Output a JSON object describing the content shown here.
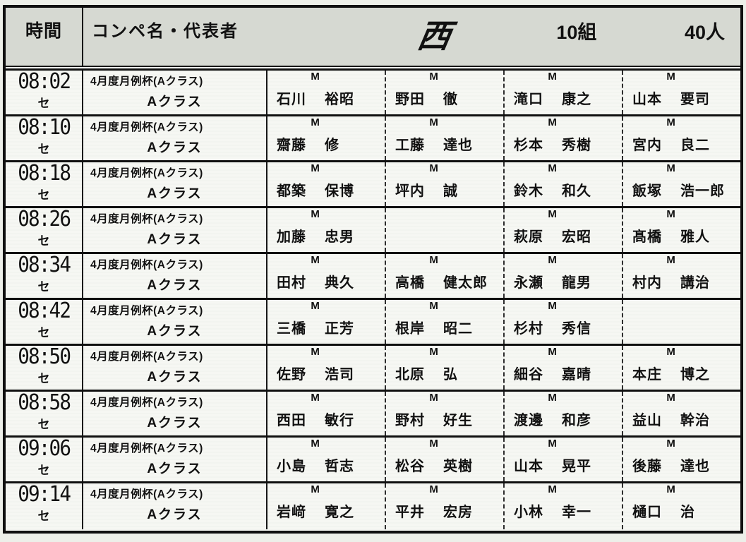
{
  "header": {
    "time_col": "時間",
    "compe_col": "コンペ名・代表者",
    "course": "西",
    "groups": "10組",
    "players_total": "40人"
  },
  "rows": [
    {
      "time": "08:02",
      "se": "セ",
      "compe_line1": "4月度月例杯(Aクラス)",
      "compe_line2": "Aクラス",
      "players": [
        {
          "marker": "M",
          "sei": "石川",
          "mei": "裕昭"
        },
        {
          "marker": "M",
          "sei": "野田",
          "mei": "徹"
        },
        {
          "marker": "M",
          "sei": "滝口",
          "mei": "康之"
        },
        {
          "marker": "M",
          "sei": "山本",
          "mei": "要司"
        }
      ]
    },
    {
      "time": "08:10",
      "se": "セ",
      "compe_line1": "4月度月例杯(Aクラス)",
      "compe_line2": "Aクラス",
      "players": [
        {
          "marker": "M",
          "sei": "齋藤",
          "mei": "修"
        },
        {
          "marker": "M",
          "sei": "工藤",
          "mei": "達也"
        },
        {
          "marker": "M",
          "sei": "杉本",
          "mei": "秀樹"
        },
        {
          "marker": "M",
          "sei": "宮内",
          "mei": "良二"
        }
      ]
    },
    {
      "time": "08:18",
      "se": "セ",
      "compe_line1": "4月度月例杯(Aクラス)",
      "compe_line2": "Aクラス",
      "players": [
        {
          "marker": "M",
          "sei": "都築",
          "mei": "保博"
        },
        {
          "marker": "M",
          "sei": "坪内",
          "mei": "誠"
        },
        {
          "marker": "M",
          "sei": "鈴木",
          "mei": "和久"
        },
        {
          "marker": "M",
          "sei": "飯塚",
          "mei": "浩一郎"
        }
      ]
    },
    {
      "time": "08:26",
      "se": "セ",
      "compe_line1": "4月度月例杯(Aクラス)",
      "compe_line2": "Aクラス",
      "players": [
        {
          "marker": "M",
          "sei": "加藤",
          "mei": "忠男"
        },
        {},
        {
          "marker": "M",
          "sei": "萩原",
          "mei": "宏昭"
        },
        {
          "marker": "M",
          "sei": "髙橋",
          "mei": "雅人"
        }
      ]
    },
    {
      "time": "08:34",
      "se": "セ",
      "compe_line1": "4月度月例杯(Aクラス)",
      "compe_line2": "Aクラス",
      "players": [
        {
          "marker": "M",
          "sei": "田村",
          "mei": "典久"
        },
        {
          "marker": "M",
          "sei": "高橋",
          "mei": "健太郎"
        },
        {
          "marker": "M",
          "sei": "永瀬",
          "mei": "龍男"
        },
        {
          "marker": "M",
          "sei": "村内",
          "mei": "講治"
        }
      ]
    },
    {
      "time": "08:42",
      "se": "セ",
      "compe_line1": "4月度月例杯(Aクラス)",
      "compe_line2": "Aクラス",
      "players": [
        {
          "marker": "M",
          "sei": "三橋",
          "mei": "正芳"
        },
        {
          "marker": "M",
          "sei": "根岸",
          "mei": "昭二"
        },
        {
          "marker": "M",
          "sei": "杉村",
          "mei": "秀信"
        },
        {}
      ]
    },
    {
      "time": "08:50",
      "se": "セ",
      "compe_line1": "4月度月例杯(Aクラス)",
      "compe_line2": "Aクラス",
      "players": [
        {
          "marker": "M",
          "sei": "佐野",
          "mei": "浩司"
        },
        {
          "marker": "M",
          "sei": "北原",
          "mei": "弘"
        },
        {
          "marker": "M",
          "sei": "細谷",
          "mei": "嘉晴"
        },
        {
          "marker": "M",
          "sei": "本庄",
          "mei": "博之"
        }
      ]
    },
    {
      "time": "08:58",
      "se": "セ",
      "compe_line1": "4月度月例杯(Aクラス)",
      "compe_line2": "Aクラス",
      "players": [
        {
          "marker": "M",
          "sei": "西田",
          "mei": "敏行"
        },
        {
          "marker": "M",
          "sei": "野村",
          "mei": "好生"
        },
        {
          "marker": "M",
          "sei": "渡邊",
          "mei": "和彦"
        },
        {
          "marker": "M",
          "sei": "益山",
          "mei": "幹治"
        }
      ]
    },
    {
      "time": "09:06",
      "se": "セ",
      "compe_line1": "4月度月例杯(Aクラス)",
      "compe_line2": "Aクラス",
      "players": [
        {
          "marker": "M",
          "sei": "小島",
          "mei": "哲志"
        },
        {
          "marker": "M",
          "sei": "松谷",
          "mei": "英樹"
        },
        {
          "marker": "M",
          "sei": "山本",
          "mei": "晃平"
        },
        {
          "marker": "M",
          "sei": "後藤",
          "mei": "達也"
        }
      ]
    },
    {
      "time": "09:14",
      "se": "セ",
      "compe_line1": "4月度月例杯(Aクラス)",
      "compe_line2": "Aクラス",
      "players": [
        {
          "marker": "M",
          "sei": "岩﨑",
          "mei": "寛之"
        },
        {
          "marker": "M",
          "sei": "平井",
          "mei": "宏房"
        },
        {
          "marker": "M",
          "sei": "小林",
          "mei": "幸一"
        },
        {
          "marker": "M",
          "sei": "樋口",
          "mei": "治"
        }
      ]
    }
  ],
  "colors": {
    "header_bg": "#d6d9d2",
    "paper": "#f6f7f3",
    "line": "#101010"
  }
}
